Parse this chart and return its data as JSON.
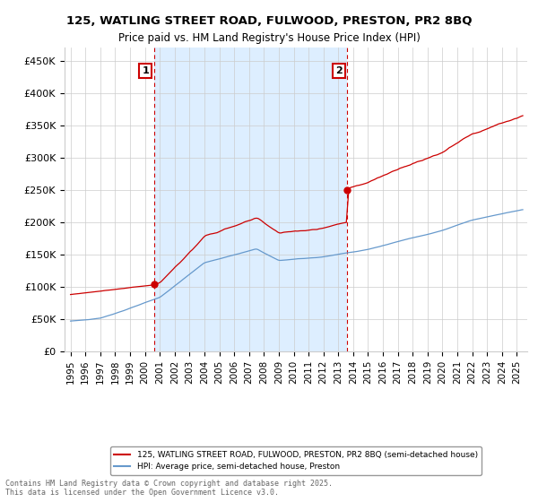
{
  "title": "125, WATLING STREET ROAD, FULWOOD, PRESTON, PR2 8BQ",
  "subtitle": "Price paid vs. HM Land Registry's House Price Index (HPI)",
  "ylim": [
    0,
    470000
  ],
  "yticks": [
    0,
    50000,
    100000,
    150000,
    200000,
    250000,
    300000,
    350000,
    400000,
    450000
  ],
  "ytick_labels": [
    "£0",
    "£50K",
    "£100K",
    "£150K",
    "£200K",
    "£250K",
    "£300K",
    "£350K",
    "£400K",
    "£450K"
  ],
  "sale_color": "#cc0000",
  "hpi_color": "#6699cc",
  "shade_color": "#ddeeff",
  "annotation_1_label": "1",
  "annotation_2_label": "2",
  "legend_line1": "125, WATLING STREET ROAD, FULWOOD, PRESTON, PR2 8BQ (semi-detached house)",
  "legend_line2": "HPI: Average price, semi-detached house, Preston",
  "footer": "Contains HM Land Registry data © Crown copyright and database right 2025.\nThis data is licensed under the Open Government Licence v3.0.",
  "dashed_vline_color": "#cc0000",
  "background_color": "#ffffff",
  "grid_color": "#cccccc",
  "sale1_year": 2000.6,
  "sale2_year": 2013.6,
  "sale1_price": 104000,
  "sale2_price": 250000
}
